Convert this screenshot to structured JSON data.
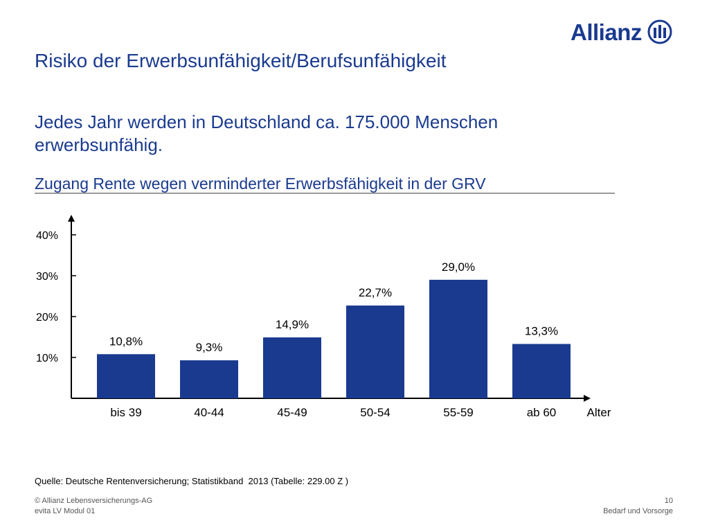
{
  "brand": {
    "name": "Allianz",
    "logo_icon": "allianz-eagle-emblem-icon",
    "color": "#1a3a8f"
  },
  "title": "Risiko der Erwerbsunfähigkeit/Berufsunfähigkeit",
  "subtitle": "Jedes Jahr werden in Deutschland ca. 175.000 Menschen erwerbsunfähig.",
  "chart_data": {
    "type": "bar",
    "title": "Zugang Rente wegen verminderter Erwerbsfähigkeit in der GRV",
    "xlabel": "Alter",
    "ylabel": "",
    "categories": [
      "bis 39",
      "40-44",
      "45-49",
      "50-54",
      "55-59",
      "ab 60"
    ],
    "values": [
      10.8,
      9.3,
      14.9,
      22.7,
      29.0,
      13.3
    ],
    "value_labels": [
      "10,8%",
      "9,3%",
      "14,9%",
      "22,7%",
      "29,0%",
      "13,3%"
    ],
    "yticks": [
      10,
      20,
      30,
      40
    ],
    "ytick_labels": [
      "10%",
      "20%",
      "30%",
      "40%"
    ],
    "ylim": [
      0,
      40
    ],
    "grid": false,
    "bar_color": "#1a3a8f"
  },
  "source": "Quelle: Deutsche Rentenversicherung; Statistikband  2013 (Tabelle: 229.00 Z )",
  "footer": {
    "left_line1": "© Allianz Lebensversicherungs-AG",
    "left_line2": "evita LV Modul 01",
    "page_number": "10",
    "section": "Bedarf und Vorsorge"
  }
}
